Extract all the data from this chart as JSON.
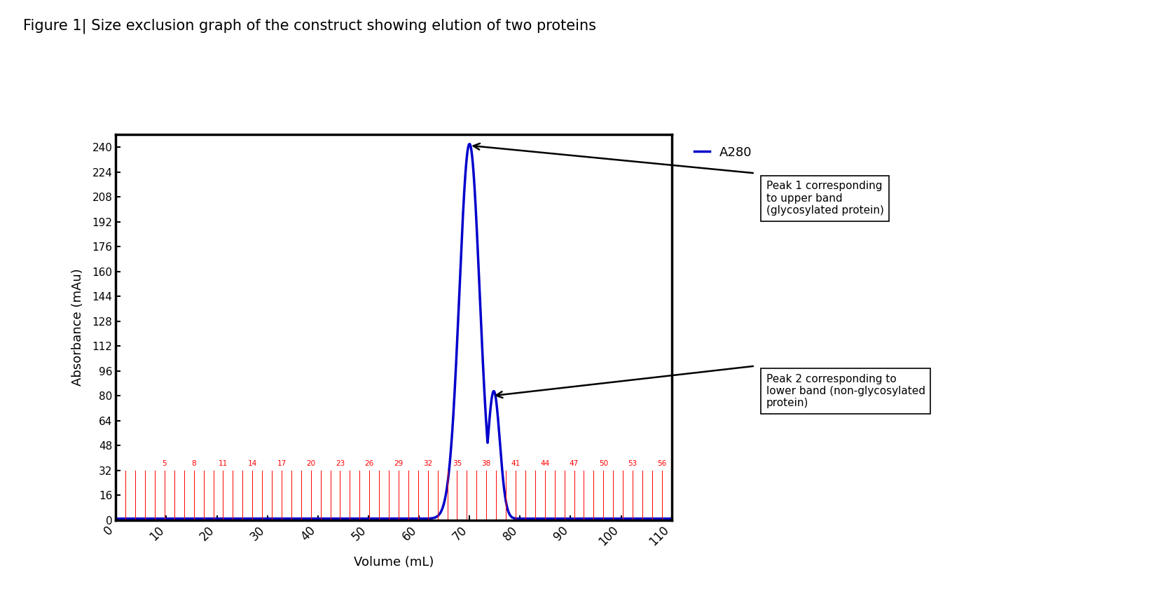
{
  "title": "Figure 1| Size exclusion graph of the construct showing elution of two proteins",
  "xlabel": "Volume (mL)",
  "ylabel": "Absorbance (mAu)",
  "xlim": [
    0,
    110
  ],
  "ylim": [
    0,
    248
  ],
  "yticks": [
    0,
    16,
    32,
    48,
    64,
    80,
    96,
    112,
    128,
    144,
    160,
    176,
    192,
    208,
    224,
    240
  ],
  "xticks": [
    0,
    10,
    20,
    30,
    40,
    50,
    60,
    70,
    80,
    90,
    100,
    110
  ],
  "line_color": "#0000CC",
  "line_width": 2.5,
  "fraction_labels": [
    5,
    8,
    11,
    14,
    17,
    20,
    23,
    26,
    29,
    32,
    35,
    38,
    41,
    44,
    47,
    50,
    53,
    56
  ],
  "fraction_color": "#FF0000",
  "peak1_x": 70.0,
  "peak1_y": 241,
  "peak2_x": 74.5,
  "peak2_y": 80,
  "legend_label": "A280",
  "annotation1": "Peak 1 corresponding\nto upper band\n(glycosylated protein)",
  "annotation2": "Peak 2 corresponding to\nlower band (non-glycosylated\nprotein)",
  "bg_color": "#ffffff",
  "figwidth": 16.53,
  "figheight": 8.74,
  "dpi": 100
}
